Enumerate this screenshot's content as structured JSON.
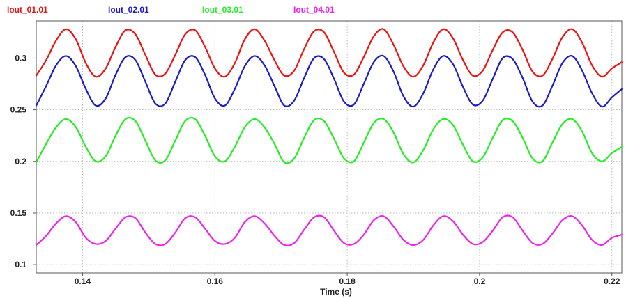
{
  "chart_data": {
    "type": "line",
    "title": "",
    "xlabel": "Time (s)",
    "ylabel": "",
    "xlim": [
      0.133,
      0.2215
    ],
    "ylim": [
      0.092,
      0.336
    ],
    "grid": true,
    "legend_position": "top-left",
    "x_ticks": [
      0.14,
      0.16,
      0.18,
      0.2,
      0.22
    ],
    "x_tick_labels": [
      "0.14",
      "0.16",
      "0.18",
      "0.2",
      "0.22"
    ],
    "y_ticks": [
      0.1,
      0.15,
      0.2,
      0.25,
      0.3
    ],
    "y_tick_labels": [
      "0.1",
      "0.15",
      "0.2",
      "0.25",
      "0.3"
    ],
    "x": [
      0.133,
      0.1345,
      0.136,
      0.1375,
      0.139,
      0.1405,
      0.142,
      0.1435,
      0.145,
      0.1465,
      0.148,
      0.1495,
      0.151,
      0.1525,
      0.154,
      0.1555,
      0.157,
      0.1585,
      0.16,
      0.1615,
      0.163,
      0.1645,
      0.166,
      0.1675,
      0.169,
      0.1705,
      0.172,
      0.1735,
      0.175,
      0.1765,
      0.178,
      0.1795,
      0.181,
      0.1825,
      0.184,
      0.1855,
      0.187,
      0.1885,
      0.19,
      0.1915,
      0.193,
      0.1945,
      0.196,
      0.1975,
      0.199,
      0.2005,
      0.202,
      0.2035,
      0.205,
      0.2065,
      0.208,
      0.2095,
      0.211,
      0.2125,
      0.214,
      0.2155,
      0.217,
      0.2185,
      0.22,
      0.2215
    ],
    "series": [
      {
        "name": "Iout_01.01",
        "color": "#ee1111",
        "values": [
          0.283,
          0.298,
          0.317,
          0.328,
          0.318,
          0.295,
          0.282,
          0.29,
          0.311,
          0.327,
          0.323,
          0.303,
          0.284,
          0.285,
          0.303,
          0.323,
          0.327,
          0.311,
          0.29,
          0.282,
          0.295,
          0.318,
          0.328,
          0.317,
          0.298,
          0.283,
          0.288,
          0.309,
          0.326,
          0.325,
          0.306,
          0.286,
          0.284,
          0.301,
          0.321,
          0.328,
          0.313,
          0.292,
          0.282,
          0.293,
          0.315,
          0.328,
          0.319,
          0.298,
          0.283,
          0.288,
          0.308,
          0.325,
          0.325,
          0.308,
          0.287,
          0.283,
          0.299,
          0.32,
          0.328,
          0.315,
          0.293,
          0.282,
          0.29,
          0.296
        ]
      },
      {
        "name": "Iout_02.01",
        "color": "#1a1acc",
        "values": [
          0.254,
          0.273,
          0.293,
          0.302,
          0.292,
          0.27,
          0.254,
          0.261,
          0.284,
          0.301,
          0.298,
          0.277,
          0.256,
          0.256,
          0.277,
          0.298,
          0.301,
          0.284,
          0.261,
          0.254,
          0.27,
          0.292,
          0.302,
          0.293,
          0.273,
          0.254,
          0.259,
          0.281,
          0.3,
          0.299,
          0.28,
          0.258,
          0.255,
          0.275,
          0.296,
          0.302,
          0.287,
          0.263,
          0.253,
          0.266,
          0.289,
          0.302,
          0.294,
          0.272,
          0.255,
          0.259,
          0.28,
          0.3,
          0.299,
          0.281,
          0.258,
          0.254,
          0.273,
          0.295,
          0.302,
          0.288,
          0.266,
          0.253,
          0.262,
          0.27
        ]
      },
      {
        "name": "Iout_03.01",
        "color": "#22ee22",
        "values": [
          0.199,
          0.217,
          0.233,
          0.241,
          0.233,
          0.214,
          0.2,
          0.205,
          0.225,
          0.241,
          0.239,
          0.22,
          0.201,
          0.201,
          0.22,
          0.239,
          0.241,
          0.225,
          0.205,
          0.2,
          0.214,
          0.233,
          0.241,
          0.233,
          0.217,
          0.199,
          0.203,
          0.223,
          0.24,
          0.239,
          0.222,
          0.203,
          0.2,
          0.218,
          0.237,
          0.241,
          0.228,
          0.207,
          0.199,
          0.211,
          0.231,
          0.241,
          0.235,
          0.216,
          0.2,
          0.204,
          0.223,
          0.24,
          0.239,
          0.223,
          0.203,
          0.2,
          0.218,
          0.236,
          0.241,
          0.229,
          0.208,
          0.2,
          0.208,
          0.214
        ]
      },
      {
        "name": "Iout_04.01",
        "color": "#ee22ee",
        "values": [
          0.119,
          0.128,
          0.14,
          0.147,
          0.141,
          0.126,
          0.12,
          0.123,
          0.135,
          0.146,
          0.145,
          0.131,
          0.12,
          0.12,
          0.131,
          0.145,
          0.146,
          0.135,
          0.123,
          0.12,
          0.126,
          0.141,
          0.147,
          0.14,
          0.128,
          0.119,
          0.121,
          0.134,
          0.146,
          0.146,
          0.133,
          0.121,
          0.12,
          0.129,
          0.143,
          0.147,
          0.137,
          0.124,
          0.119,
          0.124,
          0.138,
          0.147,
          0.142,
          0.129,
          0.12,
          0.122,
          0.133,
          0.146,
          0.146,
          0.133,
          0.121,
          0.12,
          0.13,
          0.143,
          0.147,
          0.138,
          0.124,
          0.119,
          0.126,
          0.129
        ]
      }
    ]
  }
}
